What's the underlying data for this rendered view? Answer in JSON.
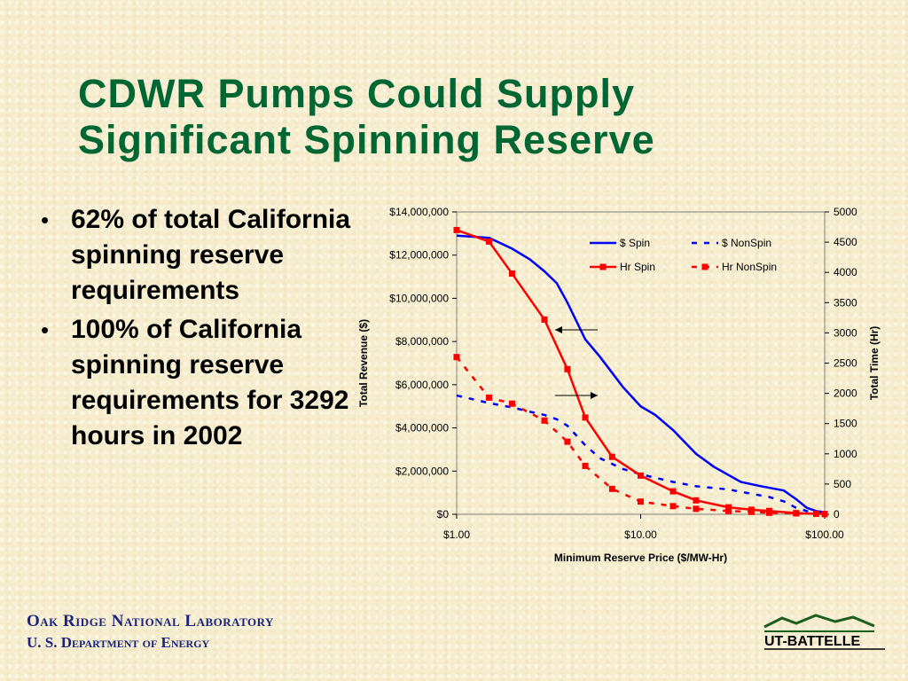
{
  "slide": {
    "title_line1": "CDWR Pumps Could Supply",
    "title_line2": "Significant Spinning Reserve",
    "bullets": [
      "62% of total California spinning reserve requirements",
      "100% of California spinning reserve requirements for 3292 hours in 2002"
    ],
    "footer_line1": "Oak Ridge National Laboratory",
    "footer_line2": "U. S. Department of Energy",
    "logo_text": "UT-BATTELLE"
  },
  "colors": {
    "title": "#006633",
    "blue": "#0000ff",
    "red": "#ff0000",
    "footer": "#1a237e",
    "logo": "#1b5e20"
  },
  "chart_data": {
    "type": "line",
    "xlabel": "Minimum Reserve Price ($/MW-Hr)",
    "ylabel": "Total Revenue ($)",
    "y2label": "Total Time (Hr)",
    "xscale": "log",
    "xlim": [
      1,
      100
    ],
    "xticks": [
      "$1.00",
      "$10.00",
      "$100.00"
    ],
    "ylim": [
      0,
      14000000
    ],
    "yticks": [
      "$0",
      "$2,000,000",
      "$4,000,000",
      "$6,000,000",
      "$8,000,000",
      "$10,000,000",
      "$12,000,000",
      "$14,000,000"
    ],
    "y2lim": [
      0,
      5000
    ],
    "y2ticks": [
      "0",
      "500",
      "1000",
      "1500",
      "2000",
      "2500",
      "3000",
      "3500",
      "4000",
      "4500",
      "5000"
    ],
    "legend_position": "top-right",
    "grid": false,
    "series": [
      {
        "name": "$ Spin",
        "axis": "left",
        "style": "solid",
        "markers": false,
        "color": "#0000ff",
        "x": [
          1,
          1.5,
          2,
          2.5,
          3,
          3.5,
          4,
          5,
          6,
          8,
          10,
          12,
          15,
          20,
          25,
          35,
          45,
          60,
          70,
          80,
          90,
          100
        ],
        "y": [
          12900000,
          12800000,
          12300000,
          11800000,
          11250000,
          10700000,
          9800000,
          8100000,
          7300000,
          5900000,
          5000000,
          4600000,
          3900000,
          2800000,
          2200000,
          1500000,
          1300000,
          1100000,
          700000,
          300000,
          150000,
          100000
        ]
      },
      {
        "name": "$ NonSpin",
        "axis": "left",
        "style": "dashed",
        "markers": false,
        "color": "#0000ff",
        "x": [
          1,
          1.5,
          2,
          2.5,
          3,
          3.5,
          4,
          5,
          6,
          8,
          10,
          15,
          20,
          30,
          40,
          50,
          60,
          70,
          80,
          100
        ],
        "y": [
          5500000,
          5150000,
          4950000,
          4750000,
          4600000,
          4400000,
          4100000,
          3200000,
          2600000,
          2100000,
          1850000,
          1500000,
          1300000,
          1150000,
          950000,
          800000,
          600000,
          300000,
          150000,
          100000
        ]
      },
      {
        "name": "Hr Spin",
        "axis": "right",
        "style": "solid",
        "markers": true,
        "color": "#ff0000",
        "x": [
          1,
          1.5,
          2,
          3,
          4,
          5,
          7,
          10,
          15,
          20,
          30,
          40,
          50,
          70,
          90,
          100
        ],
        "y": [
          4700,
          4510,
          3980,
          3220,
          2400,
          1600,
          950,
          640,
          380,
          230,
          115,
          75,
          55,
          20,
          10,
          5
        ]
      },
      {
        "name": "Hr NonSpin",
        "axis": "right",
        "style": "dashed",
        "markers": true,
        "color": "#ff0000",
        "x": [
          1,
          1.5,
          2,
          3,
          4,
          5,
          7,
          10,
          15,
          20,
          30,
          40,
          50,
          70,
          90,
          100
        ],
        "y": [
          2600,
          1930,
          1830,
          1550,
          1200,
          800,
          420,
          210,
          135,
          90,
          55,
          40,
          25,
          15,
          10,
          5
        ]
      }
    ]
  }
}
